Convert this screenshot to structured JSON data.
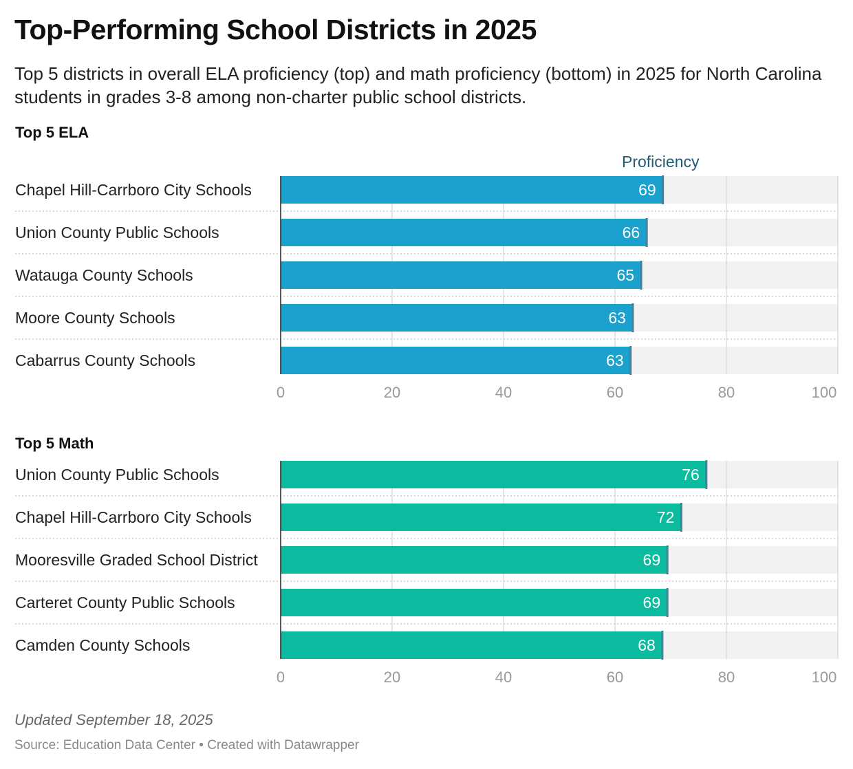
{
  "title": "Top-Performing School Districts in 2025",
  "subtitle": "Top 5 districts in overall ELA proficiency (top) and math proficiency (bottom) in 2025 for North Carolina students in grades 3-8 among non-charter public school districts.",
  "notes": "Updated September 18, 2025",
  "source": "Source: Education Data Center • Created with Datawrapper",
  "chart_data": [
    {
      "type": "bar",
      "title": "Top 5 ELA",
      "xlabel": "Proficiency",
      "color": "#1aa1cd",
      "xlim": [
        0,
        100
      ],
      "ticks": [
        "0",
        "20",
        "40",
        "60",
        "80",
        "100"
      ],
      "categories": [
        "Chapel Hill-Carrboro City Schools",
        "Union County Public Schools",
        "Watauga County Schools",
        "Moore County Schools",
        "Cabarrus County Schools"
      ],
      "values": [
        68.6,
        65.7,
        64.7,
        63.2,
        62.8
      ],
      "labels": [
        "69",
        "66",
        "65",
        "63",
        "63"
      ]
    },
    {
      "type": "bar",
      "title": "Top 5 Math",
      "xlabel": "",
      "color": "#0bbb9f",
      "xlim": [
        0,
        100
      ],
      "ticks": [
        "0",
        "20",
        "40",
        "60",
        "80",
        "100"
      ],
      "categories": [
        "Union County Public Schools",
        "Chapel Hill-Carrboro City Schools",
        "Mooresville Graded School District",
        "Carteret County Public Schools",
        "Camden County Schools"
      ],
      "values": [
        76.4,
        71.9,
        69.4,
        69.4,
        68.5
      ],
      "labels": [
        "76",
        "72",
        "69",
        "69",
        "68"
      ]
    }
  ]
}
